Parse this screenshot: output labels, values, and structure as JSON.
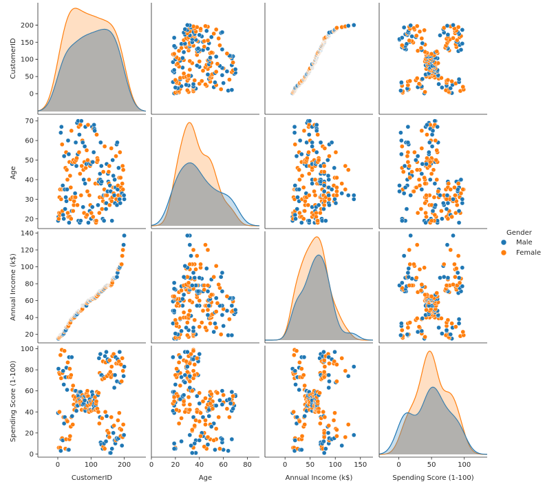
{
  "chart_data": {
    "type": "pairplot",
    "variables": [
      "CustomerID",
      "Age",
      "Annual Income (k$)",
      "Spending Score (1-100)"
    ],
    "axes": {
      "CustomerID": {
        "range": [
          -60,
          265
        ],
        "ticks": [
          0,
          100,
          200
        ]
      },
      "Age": {
        "range": [
          0,
          90
        ],
        "ticks": [
          0,
          20,
          40,
          60,
          80
        ],
        "row_range": [
          15,
          72
        ],
        "row_ticks": [
          20,
          30,
          40,
          50,
          60,
          70
        ]
      },
      "Annual Income (k$)": {
        "range": [
          -40,
          175
        ],
        "ticks": [
          0,
          50,
          100,
          150
        ],
        "row_range": [
          10,
          142
        ],
        "row_ticks": [
          20,
          40,
          60,
          80,
          100,
          120,
          140
        ]
      },
      "Spending Score (1-100)": {
        "range": [
          -30,
          135
        ],
        "ticks": [
          0,
          50,
          100
        ],
        "row_range": [
          -3,
          103
        ],
        "row_ticks": [
          0,
          20,
          40,
          60,
          80,
          100
        ]
      }
    },
    "diag_ticks": [
      0,
      50,
      100,
      150,
      200
    ],
    "legend": {
      "title": "Gender",
      "placement": "center-right",
      "series": [
        {
          "name": "Male",
          "color": "#1f77b4"
        },
        {
          "name": "Female",
          "color": "#ff7f0e"
        }
      ]
    },
    "grid": false,
    "rows": [
      [
        1,
        19,
        15,
        39,
        "Male"
      ],
      [
        2,
        21,
        15,
        81,
        "Male"
      ],
      [
        3,
        20,
        16,
        6,
        "Female"
      ],
      [
        4,
        23,
        16,
        77,
        "Female"
      ],
      [
        5,
        31,
        17,
        40,
        "Female"
      ],
      [
        6,
        22,
        17,
        76,
        "Female"
      ],
      [
        7,
        35,
        18,
        6,
        "Female"
      ],
      [
        8,
        23,
        18,
        94,
        "Female"
      ],
      [
        9,
        64,
        19,
        3,
        "Male"
      ],
      [
        10,
        30,
        19,
        72,
        "Female"
      ],
      [
        11,
        67,
        19,
        14,
        "Male"
      ],
      [
        12,
        35,
        19,
        99,
        "Female"
      ],
      [
        13,
        58,
        20,
        15,
        "Female"
      ],
      [
        14,
        24,
        20,
        77,
        "Female"
      ],
      [
        15,
        37,
        20,
        13,
        "Male"
      ],
      [
        16,
        22,
        20,
        79,
        "Male"
      ],
      [
        17,
        35,
        21,
        35,
        "Female"
      ],
      [
        18,
        20,
        21,
        66,
        "Male"
      ],
      [
        19,
        52,
        23,
        29,
        "Male"
      ],
      [
        20,
        35,
        23,
        98,
        "Female"
      ],
      [
        21,
        35,
        24,
        35,
        "Male"
      ],
      [
        22,
        25,
        24,
        73,
        "Male"
      ],
      [
        23,
        46,
        25,
        5,
        "Female"
      ],
      [
        24,
        31,
        25,
        73,
        "Male"
      ],
      [
        25,
        54,
        28,
        14,
        "Female"
      ],
      [
        26,
        29,
        28,
        82,
        "Male"
      ],
      [
        27,
        45,
        28,
        32,
        "Female"
      ],
      [
        28,
        35,
        28,
        61,
        "Male"
      ],
      [
        29,
        40,
        29,
        31,
        "Female"
      ],
      [
        30,
        23,
        29,
        87,
        "Female"
      ],
      [
        31,
        60,
        30,
        4,
        "Male"
      ],
      [
        32,
        21,
        30,
        73,
        "Female"
      ],
      [
        33,
        53,
        33,
        4,
        "Male"
      ],
      [
        34,
        18,
        33,
        92,
        "Male"
      ],
      [
        35,
        49,
        33,
        14,
        "Female"
      ],
      [
        36,
        21,
        33,
        81,
        "Female"
      ],
      [
        37,
        42,
        34,
        17,
        "Female"
      ],
      [
        38,
        30,
        34,
        73,
        "Female"
      ],
      [
        39,
        36,
        37,
        26,
        "Female"
      ],
      [
        40,
        20,
        37,
        75,
        "Female"
      ],
      [
        41,
        65,
        38,
        35,
        "Female"
      ],
      [
        42,
        24,
        38,
        92,
        "Male"
      ],
      [
        43,
        48,
        39,
        36,
        "Male"
      ],
      [
        44,
        31,
        39,
        61,
        "Female"
      ],
      [
        45,
        49,
        39,
        28,
        "Female"
      ],
      [
        46,
        24,
        39,
        65,
        "Female"
      ],
      [
        47,
        50,
        40,
        55,
        "Female"
      ],
      [
        48,
        27,
        40,
        47,
        "Female"
      ],
      [
        49,
        29,
        40,
        42,
        "Female"
      ],
      [
        50,
        31,
        40,
        42,
        "Female"
      ],
      [
        51,
        49,
        42,
        52,
        "Female"
      ],
      [
        52,
        33,
        42,
        60,
        "Male"
      ],
      [
        53,
        31,
        43,
        54,
        "Female"
      ],
      [
        54,
        59,
        43,
        60,
        "Male"
      ],
      [
        55,
        50,
        43,
        45,
        "Female"
      ],
      [
        56,
        47,
        43,
        41,
        "Male"
      ],
      [
        57,
        51,
        44,
        50,
        "Female"
      ],
      [
        58,
        69,
        44,
        46,
        "Male"
      ],
      [
        59,
        27,
        46,
        51,
        "Female"
      ],
      [
        60,
        53,
        46,
        46,
        "Male"
      ],
      [
        61,
        70,
        46,
        56,
        "Male"
      ],
      [
        62,
        19,
        46,
        55,
        "Male"
      ],
      [
        63,
        67,
        47,
        52,
        "Female"
      ],
      [
        64,
        54,
        47,
        59,
        "Female"
      ],
      [
        65,
        63,
        48,
        51,
        "Male"
      ],
      [
        66,
        18,
        48,
        59,
        "Male"
      ],
      [
        67,
        43,
        48,
        50,
        "Female"
      ],
      [
        68,
        68,
        48,
        48,
        "Female"
      ],
      [
        69,
        19,
        48,
        59,
        "Male"
      ],
      [
        70,
        32,
        48,
        47,
        "Female"
      ],
      [
        71,
        70,
        49,
        55,
        "Male"
      ],
      [
        72,
        47,
        49,
        42,
        "Female"
      ],
      [
        73,
        60,
        50,
        49,
        "Female"
      ],
      [
        74,
        60,
        50,
        56,
        "Female"
      ],
      [
        75,
        59,
        54,
        47,
        "Male"
      ],
      [
        76,
        26,
        54,
        54,
        "Male"
      ],
      [
        77,
        45,
        54,
        53,
        "Female"
      ],
      [
        78,
        40,
        54,
        48,
        "Male"
      ],
      [
        79,
        23,
        54,
        52,
        "Female"
      ],
      [
        80,
        49,
        54,
        42,
        "Female"
      ],
      [
        81,
        57,
        54,
        51,
        "Male"
      ],
      [
        82,
        38,
        54,
        55,
        "Male"
      ],
      [
        83,
        67,
        54,
        41,
        "Male"
      ],
      [
        84,
        46,
        54,
        44,
        "Female"
      ],
      [
        85,
        21,
        54,
        57,
        "Female"
      ],
      [
        86,
        48,
        54,
        46,
        "Male"
      ],
      [
        87,
        55,
        57,
        58,
        "Female"
      ],
      [
        88,
        22,
        57,
        55,
        "Female"
      ],
      [
        89,
        34,
        58,
        60,
        "Female"
      ],
      [
        90,
        50,
        58,
        46,
        "Female"
      ],
      [
        91,
        68,
        59,
        55,
        "Female"
      ],
      [
        92,
        18,
        59,
        41,
        "Male"
      ],
      [
        93,
        48,
        60,
        49,
        "Male"
      ],
      [
        94,
        40,
        60,
        40,
        "Female"
      ],
      [
        95,
        32,
        60,
        42,
        "Female"
      ],
      [
        96,
        24,
        60,
        52,
        "Male"
      ],
      [
        97,
        47,
        60,
        47,
        "Female"
      ],
      [
        98,
        27,
        60,
        50,
        "Female"
      ],
      [
        99,
        48,
        61,
        42,
        "Male"
      ],
      [
        100,
        20,
        61,
        49,
        "Male"
      ],
      [
        101,
        23,
        62,
        41,
        "Female"
      ],
      [
        102,
        49,
        62,
        48,
        "Female"
      ],
      [
        103,
        67,
        62,
        59,
        "Male"
      ],
      [
        104,
        26,
        62,
        55,
        "Male"
      ],
      [
        105,
        49,
        62,
        56,
        "Male"
      ],
      [
        106,
        21,
        62,
        42,
        "Female"
      ],
      [
        107,
        66,
        63,
        50,
        "Female"
      ],
      [
        108,
        54,
        63,
        46,
        "Male"
      ],
      [
        109,
        68,
        63,
        43,
        "Male"
      ],
      [
        110,
        66,
        63,
        48,
        "Male"
      ],
      [
        111,
        65,
        63,
        52,
        "Male"
      ],
      [
        112,
        19,
        63,
        54,
        "Female"
      ],
      [
        113,
        38,
        64,
        42,
        "Female"
      ],
      [
        114,
        19,
        64,
        46,
        "Male"
      ],
      [
        115,
        18,
        65,
        48,
        "Female"
      ],
      [
        116,
        19,
        65,
        50,
        "Female"
      ],
      [
        117,
        63,
        65,
        43,
        "Female"
      ],
      [
        118,
        49,
        65,
        59,
        "Female"
      ],
      [
        119,
        51,
        67,
        43,
        "Female"
      ],
      [
        120,
        50,
        67,
        57,
        "Female"
      ],
      [
        121,
        27,
        67,
        56,
        "Male"
      ],
      [
        122,
        38,
        67,
        40,
        "Female"
      ],
      [
        123,
        40,
        69,
        58,
        "Female"
      ],
      [
        124,
        39,
        69,
        91,
        "Male"
      ],
      [
        125,
        23,
        70,
        29,
        "Female"
      ],
      [
        126,
        31,
        70,
        77,
        "Female"
      ],
      [
        127,
        43,
        71,
        35,
        "Male"
      ],
      [
        128,
        40,
        71,
        95,
        "Male"
      ],
      [
        129,
        59,
        71,
        11,
        "Male"
      ],
      [
        130,
        38,
        71,
        75,
        "Male"
      ],
      [
        131,
        47,
        71,
        9,
        "Male"
      ],
      [
        132,
        39,
        71,
        75,
        "Male"
      ],
      [
        133,
        25,
        72,
        34,
        "Female"
      ],
      [
        134,
        31,
        72,
        71,
        "Female"
      ],
      [
        135,
        20,
        73,
        5,
        "Male"
      ],
      [
        136,
        29,
        73,
        88,
        "Female"
      ],
      [
        137,
        44,
        73,
        7,
        "Female"
      ],
      [
        138,
        32,
        73,
        73,
        "Male"
      ],
      [
        139,
        19,
        74,
        10,
        "Male"
      ],
      [
        140,
        35,
        74,
        72,
        "Female"
      ],
      [
        141,
        57,
        75,
        5,
        "Female"
      ],
      [
        142,
        32,
        75,
        93,
        "Male"
      ],
      [
        143,
        28,
        76,
        40,
        "Female"
      ],
      [
        144,
        32,
        76,
        87,
        "Female"
      ],
      [
        145,
        25,
        77,
        12,
        "Male"
      ],
      [
        146,
        28,
        77,
        97,
        "Male"
      ],
      [
        147,
        48,
        77,
        36,
        "Male"
      ],
      [
        148,
        32,
        77,
        74,
        "Female"
      ],
      [
        149,
        34,
        78,
        22,
        "Female"
      ],
      [
        150,
        34,
        78,
        90,
        "Male"
      ],
      [
        151,
        43,
        78,
        17,
        "Male"
      ],
      [
        152,
        39,
        78,
        88,
        "Male"
      ],
      [
        153,
        44,
        78,
        20,
        "Female"
      ],
      [
        154,
        38,
        78,
        76,
        "Female"
      ],
      [
        155,
        47,
        78,
        16,
        "Female"
      ],
      [
        156,
        27,
        78,
        89,
        "Female"
      ],
      [
        157,
        37,
        78,
        1,
        "Male"
      ],
      [
        158,
        30,
        78,
        78,
        "Female"
      ],
      [
        159,
        34,
        78,
        1,
        "Male"
      ],
      [
        160,
        30,
        78,
        73,
        "Female"
      ],
      [
        161,
        56,
        79,
        35,
        "Female"
      ],
      [
        162,
        29,
        79,
        83,
        "Female"
      ],
      [
        163,
        19,
        81,
        5,
        "Male"
      ],
      [
        164,
        31,
        81,
        93,
        "Female"
      ],
      [
        165,
        50,
        85,
        26,
        "Male"
      ],
      [
        166,
        36,
        85,
        75,
        "Female"
      ],
      [
        167,
        42,
        86,
        20,
        "Male"
      ],
      [
        168,
        33,
        86,
        95,
        "Female"
      ],
      [
        169,
        36,
        87,
        27,
        "Female"
      ],
      [
        170,
        32,
        87,
        63,
        "Male"
      ],
      [
        171,
        40,
        87,
        13,
        "Male"
      ],
      [
        172,
        28,
        87,
        75,
        "Male"
      ],
      [
        173,
        36,
        87,
        10,
        "Male"
      ],
      [
        174,
        36,
        87,
        92,
        "Male"
      ],
      [
        175,
        52,
        88,
        13,
        "Female"
      ],
      [
        176,
        30,
        88,
        86,
        "Female"
      ],
      [
        177,
        58,
        88,
        15,
        "Male"
      ],
      [
        178,
        27,
        88,
        69,
        "Male"
      ],
      [
        179,
        59,
        93,
        14,
        "Male"
      ],
      [
        180,
        35,
        93,
        90,
        "Male"
      ],
      [
        181,
        37,
        97,
        32,
        "Female"
      ],
      [
        182,
        32,
        97,
        86,
        "Female"
      ],
      [
        183,
        46,
        98,
        15,
        "Male"
      ],
      [
        184,
        29,
        98,
        88,
        "Female"
      ],
      [
        185,
        41,
        99,
        39,
        "Female"
      ],
      [
        186,
        30,
        99,
        97,
        "Male"
      ],
      [
        187,
        54,
        101,
        24,
        "Female"
      ],
      [
        188,
        28,
        101,
        68,
        "Male"
      ],
      [
        189,
        41,
        103,
        17,
        "Female"
      ],
      [
        190,
        36,
        103,
        85,
        "Female"
      ],
      [
        191,
        34,
        103,
        23,
        "Female"
      ],
      [
        192,
        32,
        103,
        69,
        "Female"
      ],
      [
        193,
        33,
        113,
        8,
        "Male"
      ],
      [
        194,
        38,
        113,
        91,
        "Female"
      ],
      [
        195,
        47,
        120,
        16,
        "Female"
      ],
      [
        196,
        35,
        120,
        79,
        "Female"
      ],
      [
        197,
        45,
        126,
        28,
        "Female"
      ],
      [
        198,
        32,
        126,
        74,
        "Male"
      ],
      [
        199,
        32,
        137,
        18,
        "Male"
      ],
      [
        200,
        30,
        137,
        83,
        "Male"
      ]
    ]
  }
}
